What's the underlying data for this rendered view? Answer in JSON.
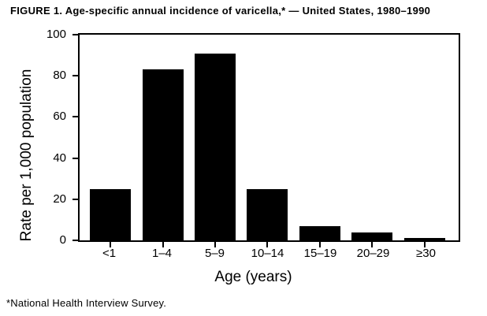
{
  "figure": {
    "title": "FIGURE 1. Age-specific annual incidence of varicella,* — United States, 1980–1990",
    "footnote": "*National Health Interview Survey."
  },
  "chart_data": {
    "type": "bar",
    "title": "FIGURE 1. Age-specific annual incidence of varicella,* — United States, 1980–1990",
    "categories": [
      "<1",
      "1–4",
      "5–9",
      "10–14",
      "15–19",
      "20–29",
      "≥30"
    ],
    "values": [
      25,
      83,
      91,
      25,
      7,
      4,
      1
    ],
    "xlabel": "Age (years)",
    "ylabel": "Rate per 1,000 population",
    "ylim": [
      0,
      100
    ],
    "yticks": [
      0,
      20,
      40,
      60,
      80,
      100
    ],
    "bar_color": "#000000",
    "background_color": "#ffffff",
    "grid": false,
    "legend": "none"
  }
}
